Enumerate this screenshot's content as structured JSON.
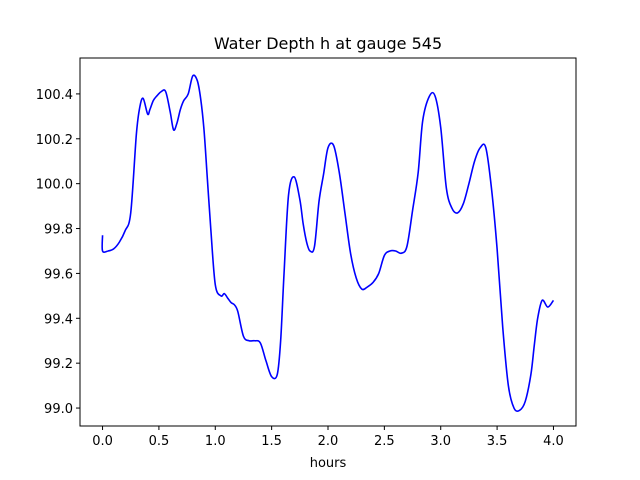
{
  "chart_data": {
    "type": "line",
    "title": "Water Depth h at gauge 545",
    "xlabel": "hours",
    "ylabel": "",
    "xlim": [
      -0.2,
      4.2
    ],
    "ylim": [
      98.92,
      100.56
    ],
    "grid": false,
    "x_ticks": [
      "0.0",
      "0.5",
      "1.0",
      "1.5",
      "2.0",
      "2.5",
      "3.0",
      "3.5",
      "4.0"
    ],
    "y_ticks": [
      "99.0",
      "99.2",
      "99.4",
      "99.6",
      "99.8",
      "100.0",
      "100.2",
      "100.4"
    ],
    "series": [
      {
        "color": "#0000ff",
        "x": [
          0.0,
          0.0,
          0.05,
          0.1,
          0.15,
          0.2,
          0.25,
          0.3,
          0.33,
          0.36,
          0.4,
          0.42,
          0.45,
          0.48,
          0.52,
          0.56,
          0.6,
          0.63,
          0.66,
          0.69,
          0.72,
          0.76,
          0.8,
          0.84,
          0.87,
          0.9,
          0.93,
          0.96,
          1.0,
          1.05,
          1.08,
          1.11,
          1.14,
          1.17,
          1.2,
          1.25,
          1.3,
          1.35,
          1.4,
          1.45,
          1.5,
          1.55,
          1.58,
          1.61,
          1.65,
          1.7,
          1.75,
          1.78,
          1.81,
          1.84,
          1.88,
          1.92,
          1.96,
          2.0,
          2.05,
          2.1,
          2.15,
          2.2,
          2.25,
          2.3,
          2.35,
          2.4,
          2.45,
          2.5,
          2.55,
          2.6,
          2.65,
          2.7,
          2.75,
          2.8,
          2.84,
          2.9,
          2.95,
          3.0,
          3.05,
          3.1,
          3.15,
          3.2,
          3.25,
          3.3,
          3.35,
          3.4,
          3.45,
          3.5,
          3.55,
          3.6,
          3.65,
          3.7,
          3.75,
          3.8,
          3.83,
          3.86,
          3.9,
          3.95,
          4.0
        ],
        "y": [
          99.77,
          99.7,
          99.7,
          99.71,
          99.74,
          99.79,
          99.87,
          100.22,
          100.34,
          100.38,
          100.31,
          100.33,
          100.37,
          100.39,
          100.41,
          100.41,
          100.32,
          100.24,
          100.27,
          100.33,
          100.37,
          100.4,
          100.48,
          100.46,
          100.38,
          100.24,
          100.02,
          99.8,
          99.55,
          99.5,
          99.51,
          99.49,
          99.47,
          99.46,
          99.43,
          99.32,
          99.3,
          99.3,
          99.29,
          99.21,
          99.14,
          99.15,
          99.3,
          99.6,
          99.95,
          100.03,
          99.93,
          99.82,
          99.74,
          99.7,
          99.72,
          99.92,
          100.04,
          100.16,
          100.17,
          100.05,
          99.87,
          99.69,
          99.58,
          99.53,
          99.54,
          99.56,
          99.6,
          99.68,
          99.7,
          99.7,
          99.69,
          99.72,
          99.88,
          100.05,
          100.28,
          100.39,
          100.39,
          100.25,
          99.98,
          99.89,
          99.87,
          99.91,
          100.0,
          100.1,
          100.16,
          100.16,
          99.98,
          99.71,
          99.36,
          99.1,
          99.0,
          98.99,
          99.03,
          99.15,
          99.28,
          99.4,
          99.48,
          99.45,
          99.48
        ]
      }
    ]
  }
}
